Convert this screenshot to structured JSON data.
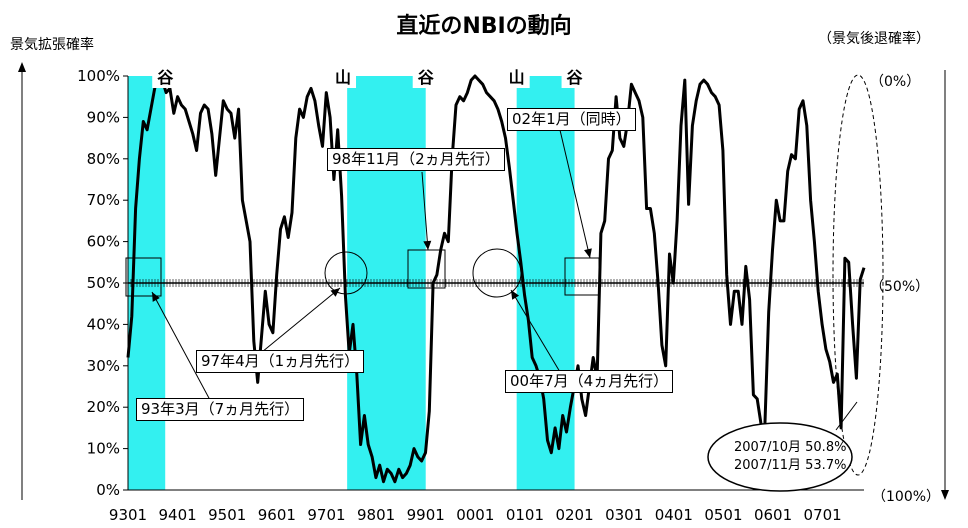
{
  "title": "直近のNBIの動向",
  "ylabel_left": "景気拡張確率",
  "ylabel_right": "（景気後退確率）",
  "right_ticks": [
    "（0%）",
    "（50%）",
    "（100%）"
  ],
  "chart_data": {
    "type": "line",
    "title": "直近のNBIの動向",
    "ylabel": "景気拡張確率",
    "ylabel_right": "（景気後退確率）",
    "ylim": [
      0,
      100
    ],
    "y_ticks": [
      "0%",
      "10%",
      "20%",
      "30%",
      "40%",
      "50%",
      "60%",
      "70%",
      "80%",
      "90%",
      "100%"
    ],
    "x_tick_labels": [
      "9301",
      "9401",
      "9501",
      "9601",
      "9701",
      "9801",
      "9901",
      "0001",
      "0101",
      "0201",
      "0301",
      "0401",
      "0501",
      "0601",
      "0701"
    ],
    "x_start": "1993-01",
    "x_end": "2007-11",
    "reference_line": 50,
    "recession_shading": [
      {
        "start": "1993-01",
        "end": "1993-10"
      },
      {
        "start": "1997-06",
        "end": "1999-01"
      },
      {
        "start": "2000-11",
        "end": "2002-01"
      }
    ],
    "turning_points": [
      {
        "label": "谷",
        "date": "1993-10"
      },
      {
        "label": "山",
        "date": "1997-05"
      },
      {
        "label": "谷",
        "date": "1999-01"
      },
      {
        "label": "山",
        "date": "2000-11"
      },
      {
        "label": "谷",
        "date": "2002-01"
      }
    ],
    "callouts": [
      "93年3月（7ヵ月先行）",
      "97年4月（1ヵ月先行）",
      "98年11月（2ヵ月先行）",
      "00年7月（4ヵ月先行）",
      "02年1月（同時）"
    ],
    "annotation": [
      "2007/10月 50.8%",
      "2007/11月 53.7%"
    ],
    "series": [
      {
        "values": [
          32,
          42,
          68,
          80,
          89,
          87,
          92,
          97,
          100,
          99,
          96,
          97,
          91,
          95,
          93,
          92,
          89,
          86,
          82,
          91,
          93,
          92,
          86,
          76,
          85,
          94,
          92,
          91,
          85,
          92,
          70,
          65,
          60,
          36,
          26,
          37,
          48,
          40,
          38,
          52,
          63,
          66,
          61,
          67,
          85,
          92,
          90,
          95,
          97,
          94,
          88,
          83,
          96,
          90,
          75,
          87,
          71,
          47,
          33,
          40,
          28,
          11,
          18,
          11,
          8,
          3,
          6,
          2,
          5,
          4,
          2,
          5,
          3,
          4,
          6,
          10,
          8,
          7,
          9,
          19,
          50,
          52,
          58,
          62,
          60,
          80,
          93,
          95,
          94,
          96,
          99,
          100,
          99,
          98,
          96,
          95,
          94,
          92,
          89,
          85,
          78,
          70,
          62,
          55,
          47,
          41,
          32,
          30,
          27,
          22,
          12,
          9,
          15,
          10,
          18,
          14,
          20,
          25,
          30,
          22,
          18,
          25,
          32,
          27,
          62,
          65,
          80,
          82,
          95,
          85,
          83,
          89,
          98,
          96,
          94,
          90,
          68,
          68,
          62,
          50,
          35,
          30,
          57,
          50,
          65,
          88,
          99,
          69,
          88,
          94,
          98,
          99,
          98,
          96,
          95,
          93,
          82,
          52,
          40,
          48,
          48,
          40,
          54,
          46,
          23,
          22,
          16,
          15,
          43,
          58,
          70,
          65,
          65,
          77,
          81,
          80,
          92,
          94,
          88,
          70,
          60,
          48,
          40,
          34,
          31,
          26,
          28,
          15,
          56,
          55,
          40,
          27,
          50.8,
          53.7
        ]
      }
    ]
  }
}
